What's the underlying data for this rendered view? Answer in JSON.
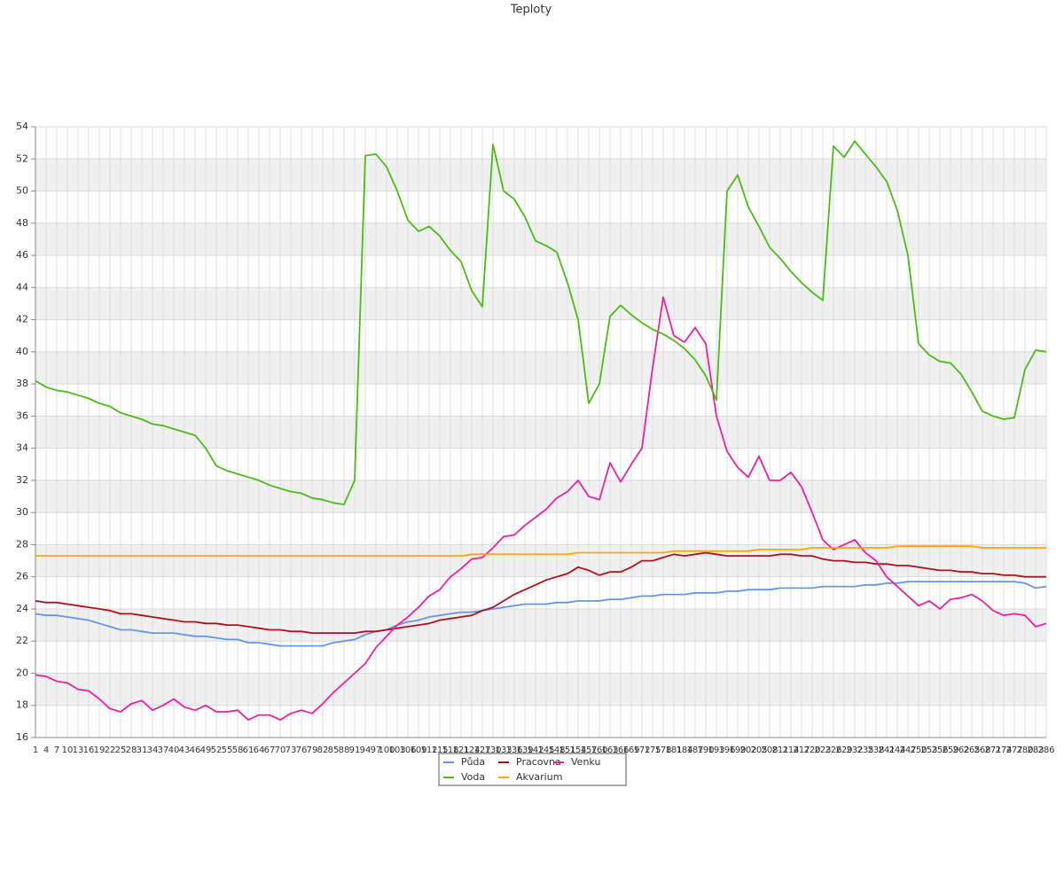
{
  "chart_data": {
    "type": "line",
    "title": "Teploty",
    "categories": [
      1,
      4,
      7,
      10,
      13,
      16,
      19,
      22,
      25,
      28,
      31,
      34,
      37,
      40,
      43,
      46,
      49,
      52,
      55,
      58,
      61,
      64,
      67,
      70,
      73,
      76,
      79,
      82,
      85,
      88,
      91,
      94,
      97,
      100,
      103,
      106,
      109,
      112,
      115,
      118,
      121,
      124,
      127,
      130,
      133,
      136,
      139,
      142,
      145,
      148,
      151,
      154,
      157,
      160,
      163,
      166,
      169,
      172,
      175,
      178,
      181,
      184,
      187,
      190,
      193,
      196,
      199,
      202,
      205,
      208,
      211,
      214,
      217,
      220,
      223,
      226,
      229,
      232,
      235,
      238,
      241,
      244,
      247,
      250,
      253,
      256,
      259,
      262,
      265,
      268,
      271,
      274,
      277,
      280,
      283,
      286
    ],
    "series": [
      {
        "name": "Půda",
        "color": "#6495ed",
        "values": [
          23.7,
          23.6,
          23.6,
          23.5,
          23.4,
          23.3,
          23.1,
          22.9,
          22.7,
          22.7,
          22.6,
          22.5,
          22.5,
          22.5,
          22.4,
          22.3,
          22.3,
          22.2,
          22.1,
          22.1,
          21.9,
          21.9,
          21.8,
          21.7,
          21.7,
          21.7,
          21.7,
          21.7,
          21.9,
          22.0,
          22.1,
          22.4,
          22.6,
          22.7,
          23.0,
          23.2,
          23.3,
          23.5,
          23.6,
          23.7,
          23.8,
          23.8,
          23.9,
          24.0,
          24.1,
          24.2,
          24.3,
          24.3,
          24.3,
          24.4,
          24.4,
          24.5,
          24.5,
          24.5,
          24.6,
          24.6,
          24.7,
          24.8,
          24.8,
          24.9,
          24.9,
          24.9,
          25.0,
          25.0,
          25.0,
          25.1,
          25.1,
          25.2,
          25.2,
          25.2,
          25.3,
          25.3,
          25.3,
          25.3,
          25.4,
          25.4,
          25.4,
          25.4,
          25.5,
          25.5,
          25.6,
          25.6,
          25.7,
          25.7,
          25.7,
          25.7,
          25.7,
          25.7,
          25.7,
          25.7,
          25.7,
          25.7,
          25.7,
          25.6,
          25.3,
          25.4
        ]
      },
      {
        "name": "Pracovna",
        "color": "#b0101c",
        "values": [
          24.5,
          24.4,
          24.4,
          24.3,
          24.2,
          24.1,
          24.0,
          23.9,
          23.7,
          23.7,
          23.6,
          23.5,
          23.4,
          23.3,
          23.2,
          23.2,
          23.1,
          23.1,
          23.0,
          23.0,
          22.9,
          22.8,
          22.7,
          22.7,
          22.6,
          22.6,
          22.5,
          22.5,
          22.5,
          22.5,
          22.5,
          22.6,
          22.6,
          22.7,
          22.8,
          22.9,
          23.0,
          23.1,
          23.3,
          23.4,
          23.5,
          23.6,
          23.9,
          24.1,
          24.5,
          24.9,
          25.2,
          25.5,
          25.8,
          26.0,
          26.2,
          26.6,
          26.4,
          26.1,
          26.3,
          26.3,
          26.6,
          27.0,
          27.0,
          27.2,
          27.4,
          27.3,
          27.4,
          27.5,
          27.4,
          27.3,
          27.3,
          27.3,
          27.3,
          27.3,
          27.4,
          27.4,
          27.3,
          27.3,
          27.1,
          27.0,
          27.0,
          26.9,
          26.9,
          26.8,
          26.8,
          26.7,
          26.7,
          26.6,
          26.5,
          26.4,
          26.4,
          26.3,
          26.3,
          26.2,
          26.2,
          26.1,
          26.1,
          26.0,
          26.0,
          26.0
        ]
      },
      {
        "name": "Venku",
        "color": "#f0209a",
        "values": [
          19.9,
          19.8,
          19.5,
          19.4,
          19.0,
          18.9,
          18.4,
          17.8,
          17.6,
          18.1,
          18.3,
          17.7,
          18.0,
          18.4,
          17.9,
          17.7,
          18.0,
          17.6,
          17.6,
          17.7,
          17.1,
          17.4,
          17.4,
          17.1,
          17.5,
          17.7,
          17.5,
          18.1,
          18.8,
          19.4,
          20.0,
          20.6,
          21.6,
          22.3,
          23.0,
          23.5,
          24.1,
          24.8,
          25.2,
          26.0,
          26.5,
          27.1,
          27.2,
          27.8,
          28.5,
          28.6,
          29.2,
          29.7,
          30.2,
          30.9,
          31.3,
          32.0,
          31.0,
          30.8,
          33.1,
          31.9,
          33.0,
          34.0,
          39.0,
          43.4,
          41.0,
          40.6,
          41.5,
          40.5,
          36.0,
          33.8,
          32.8,
          32.2,
          33.5,
          32.0,
          32.0,
          32.5,
          31.6,
          30.0,
          28.3,
          27.7,
          28.0,
          28.3,
          27.5,
          27.0,
          26.0,
          25.4,
          24.8,
          24.2,
          24.5,
          24.0,
          24.6,
          24.7,
          24.9,
          24.5,
          23.9,
          23.6,
          23.7,
          23.6,
          22.9,
          23.1
        ]
      },
      {
        "name": "Voda",
        "color": "#4cbb17",
        "values": [
          38.2,
          37.8,
          37.6,
          37.5,
          37.3,
          37.1,
          36.8,
          36.6,
          36.2,
          36.0,
          35.8,
          35.5,
          35.4,
          35.2,
          35.0,
          34.8,
          34.0,
          32.9,
          32.6,
          32.4,
          32.2,
          32.0,
          31.7,
          31.5,
          31.3,
          31.2,
          30.9,
          30.8,
          30.6,
          30.5,
          32.0,
          52.2,
          52.3,
          51.5,
          50.0,
          48.2,
          47.5,
          47.8,
          47.2,
          46.3,
          45.6,
          43.8,
          42.8,
          52.9,
          50.0,
          49.5,
          48.4,
          46.9,
          46.6,
          46.2,
          44.3,
          42.0,
          36.8,
          38.0,
          42.2,
          42.9,
          42.3,
          41.8,
          41.4,
          41.1,
          40.7,
          40.2,
          39.5,
          38.5,
          37.0,
          50.0,
          51.0,
          49.0,
          47.8,
          46.5,
          45.8,
          45.0,
          44.3,
          43.7,
          43.2,
          52.8,
          52.1,
          53.1,
          52.3,
          51.5,
          50.6,
          48.8,
          46.0,
          40.5,
          39.8,
          39.4,
          39.3,
          38.6,
          37.5,
          36.3,
          36.0,
          35.8,
          35.9,
          38.9,
          40.1,
          40.0
        ]
      },
      {
        "name": "Akvarium",
        "color": "#ffa500",
        "values": [
          27.3,
          27.3,
          27.3,
          27.3,
          27.3,
          27.3,
          27.3,
          27.3,
          27.3,
          27.3,
          27.3,
          27.3,
          27.3,
          27.3,
          27.3,
          27.3,
          27.3,
          27.3,
          27.3,
          27.3,
          27.3,
          27.3,
          27.3,
          27.3,
          27.3,
          27.3,
          27.3,
          27.3,
          27.3,
          27.3,
          27.3,
          27.3,
          27.3,
          27.3,
          27.3,
          27.3,
          27.3,
          27.3,
          27.3,
          27.3,
          27.3,
          27.4,
          27.4,
          27.4,
          27.4,
          27.4,
          27.4,
          27.4,
          27.4,
          27.4,
          27.4,
          27.5,
          27.5,
          27.5,
          27.5,
          27.5,
          27.5,
          27.5,
          27.5,
          27.5,
          27.6,
          27.6,
          27.6,
          27.6,
          27.6,
          27.6,
          27.6,
          27.6,
          27.7,
          27.7,
          27.7,
          27.7,
          27.7,
          27.8,
          27.8,
          27.8,
          27.8,
          27.8,
          27.8,
          27.8,
          27.8,
          27.9,
          27.9,
          27.9,
          27.9,
          27.9,
          27.9,
          27.9,
          27.9,
          27.8,
          27.8,
          27.8,
          27.8,
          27.8,
          27.8,
          27.8
        ]
      }
    ],
    "ylim": [
      16,
      54
    ],
    "yticks": [
      16,
      18,
      20,
      22,
      24,
      26,
      28,
      30,
      32,
      34,
      36,
      38,
      40,
      42,
      44,
      46,
      48,
      50,
      52,
      54
    ],
    "grid": true
  }
}
